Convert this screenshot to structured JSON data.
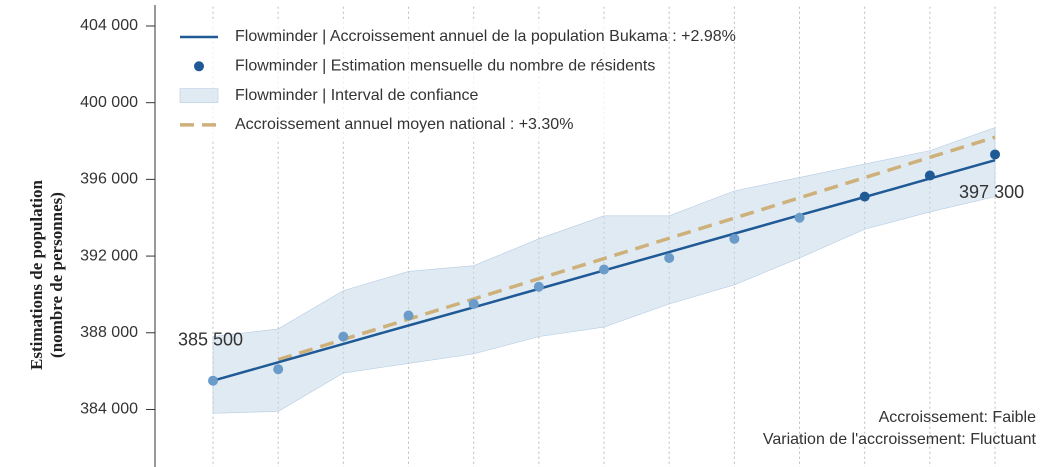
{
  "chart_data": {
    "type": "line",
    "y_label": [
      "Estimations de population",
      "(nombre de personnes)"
    ],
    "categories": [
      null,
      null,
      null,
      null,
      null,
      null,
      null,
      null,
      null,
      null,
      null,
      null,
      null
    ],
    "ylim": [
      381000,
      405000
    ],
    "yticks": [
      {
        "value": 384000,
        "label": "384 000"
      },
      {
        "value": 388000,
        "label": "388 000"
      },
      {
        "value": 392000,
        "label": "392 000"
      },
      {
        "value": 396000,
        "label": "396 000"
      },
      {
        "value": 400000,
        "label": "400 000"
      },
      {
        "value": 404000,
        "label": "404 000"
      }
    ],
    "x_grid": true,
    "series": [
      {
        "name": "Flowminder | Accroissement annuel de la population Bukama : +2.98%",
        "kind": "line",
        "color": "#1f5a96",
        "values": [
          385500,
          386460,
          387420,
          388380,
          389330,
          390290,
          391250,
          392210,
          393170,
          394130,
          395080,
          396040,
          397000
        ]
      },
      {
        "name": "Flowminder | Estimation mensuelle du nombre de résidents",
        "kind": "scatter",
        "color": "#1f5a96",
        "point_colors": [
          "#6b9bc9",
          "#6b9bc9",
          "#6b9bc9",
          "#6b9bc9",
          "#6b9bc9",
          "#6b9bc9",
          "#6b9bc9",
          "#6b9bc9",
          "#6b9bc9",
          "#6b9bc9",
          "#1f5a96",
          "#1f5a96",
          "#1f5a96"
        ],
        "label_colors": [
          "#8ab2d6",
          null,
          null,
          null,
          null,
          null,
          null,
          null,
          null,
          null,
          null,
          null,
          "#2f6fa8"
        ],
        "values": [
          385500,
          386100,
          387800,
          388900,
          389500,
          390400,
          391300,
          391900,
          392900,
          394000,
          395100,
          396200,
          397300
        ],
        "value_labels": [
          "385 500",
          null,
          null,
          null,
          null,
          null,
          null,
          null,
          null,
          null,
          null,
          null,
          "397 300"
        ]
      },
      {
        "name": "Flowminder | Interval de confiance",
        "kind": "band",
        "color": "#c6d8ea",
        "lower": [
          383800,
          383900,
          385900,
          386400,
          386900,
          387800,
          388300,
          389500,
          390500,
          391900,
          393400,
          394300,
          395100
        ],
        "upper": [
          387800,
          388200,
          390200,
          391200,
          391500,
          392900,
          394100,
          394100,
          395400,
          396100,
          396800,
          397500,
          398700
        ]
      },
      {
        "name": "Accroissement annuel moyen national : +3.30%",
        "kind": "dashed",
        "color": "#cdb07a",
        "values": [
          null,
          386600,
          387650,
          388710,
          389760,
          390820,
          391870,
          392930,
          393980,
          395040,
          396090,
          397150,
          398200
        ]
      }
    ],
    "annotations": [
      "Accroissement: Faible",
      "Variation de l'accroissement: Fluctuant"
    ]
  }
}
